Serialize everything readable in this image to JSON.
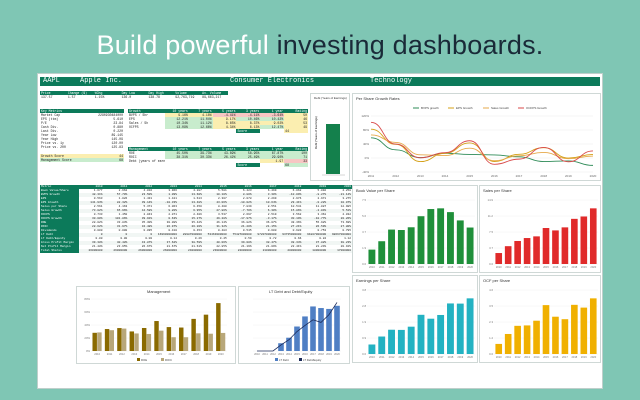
{
  "headline": {
    "part1": "Build powerful ",
    "part2": "investing dashboards."
  },
  "titlebar": {
    "ticker": "AAPL",
    "company": "Apple Inc.",
    "industry": "Consumer Electronics",
    "sector": "Technology"
  },
  "quote": {
    "headers": [
      "Price",
      "Change ($)",
      "%Chg",
      "Day Low",
      "Day High",
      "Volume",
      "Av. Volume"
    ],
    "values": [
      "137.57",
      "1.57",
      "1.15%",
      "136.0",
      "138.78",
      "92,763,719",
      "89,663,217"
    ]
  },
  "key_metrics": {
    "title": "Key Metrics",
    "rows": [
      [
        "Market Cap",
        "2290930484000"
      ],
      [
        "EPS (ttm)",
        "5.610"
      ],
      [
        "P/E",
        "23.84"
      ],
      [
        "Cash Div.",
        "0.880"
      ],
      [
        "Last Div.",
        "0.220"
      ],
      [
        "Year Low",
        "89.145"
      ],
      [
        "Year High",
        "145.09"
      ],
      [
        "Price vs. 1y",
        "120.00"
      ],
      [
        "Price vs. 200",
        "125.83"
      ]
    ],
    "growth_label": "Growth Score",
    "growth_value": "44",
    "mgmt_label": "Management Score",
    "mgmt_value": "68"
  },
  "growth": {
    "headers": [
      "Growth",
      "10 years",
      "7 years",
      "5 years",
      "3 years",
      "1 year",
      "Rating"
    ],
    "rows": [
      [
        "BVPS / Shr",
        "9.16%",
        "4.18%",
        "-4.41%",
        "-4.11%",
        "-3.64%",
        "50"
      ],
      [
        "EPS",
        "12.21%",
        "11.04%",
        "9.17%",
        "10.46%",
        "10.42%",
        "46"
      ],
      [
        "Sales / Sh",
        "10.34%",
        "11.12%",
        "8.65%",
        "8.37%",
        "9.02%",
        "53"
      ],
      [
        "OCFPS",
        "13.09%",
        "12.66%",
        "4.34%",
        "6.13%",
        "12.47%",
        "49"
      ]
    ],
    "score_label": "Score",
    "score_value": "44"
  },
  "management": {
    "headers": [
      "Management",
      "10 years",
      "7 years",
      "5 years",
      "3 years",
      "1 year",
      "Rating"
    ],
    "rows": [
      [
        "ROE",
        "45.50%",
        "39.73%",
        "43.89%",
        "58.95%",
        "67.87%",
        "100"
      ],
      [
        "ROIC",
        "38.31%",
        "30.33%",
        "26.42%",
        "25.49%",
        "29.90%",
        "71"
      ],
      [
        "Debt (years of earnings)",
        "",
        "",
        "",
        "",
        "1.97",
        "33"
      ]
    ],
    "score_label": "Score",
    "score_value": "68"
  },
  "debt_chart": {
    "title": "Debt (Years of Earnings)",
    "axis_label": "Debt (Years of Earnings)",
    "value": 1.97
  },
  "history": {
    "headers": [
      "Metric",
      "2010",
      "2011",
      "2012",
      "2013",
      "2014",
      "2015",
      "2016",
      "2017",
      "2018",
      "2019",
      "2020"
    ],
    "rows": [
      [
        "Book Value/Share",
        "1.677",
        "2.662",
        "4.016",
        "3.966",
        "4.287",
        "5.581",
        "6.423",
        "6.499",
        "6.062",
        "5.092",
        "4.258"
      ],
      [
        "BVPS Growth",
        "48.31%",
        "57.70%",
        "23.50%",
        "1.09%",
        "13.60%",
        "10.10%",
        "8.80%",
        "3.30%",
        "-10.09%",
        "-8.27%",
        "-21.14%"
      ],
      [
        "EPS",
        "0.563",
        "1.026",
        "1.431",
        "1.421",
        "1.613",
        "2.307",
        "2.078",
        "2.299",
        "2.976",
        "2.971",
        "3.275"
      ],
      [
        "EPS Growth",
        "141.93%",
        "82.32%",
        "39.14%",
        "-10.33%",
        "13.48%",
        "43.06%",
        "-10.02%",
        "10.64%",
        "29.41%",
        "-0.22%",
        "10.07%"
      ],
      [
        "Sales per Share",
        "2.561",
        "4.163",
        "5.371",
        "6.063",
        "6.450",
        "8.400",
        "7.839",
        "8.551",
        "10.541",
        "11.087",
        "12.985"
      ],
      [
        "Sales Growth",
        "73.02%",
        "65.96%",
        "44.58%",
        "9.20%",
        "6.95%",
        "27.86%",
        "-7.70%",
        "6.30%",
        "15.86%",
        "-2.04%",
        "5.51%"
      ],
      [
        "OCFPS",
        "0.733",
        "1.450",
        "2.043",
        "2.071",
        "2.406",
        "3.537",
        "2.697",
        "2.519",
        "3.562",
        "3.361",
        "4.032"
      ],
      [
        "OCFPS Growth",
        "30.00%",
        "101.86%",
        "39.91%",
        "0.63%",
        "15.27%",
        "49.28%",
        "-17.97%",
        "-3.17%",
        "30.19%",
        "-10.77%",
        "20.26%"
      ],
      [
        "ROE",
        "28.02%",
        "33.83%",
        "35.30%",
        "30.08%",
        "35.42%",
        "46.14%",
        "36.82%",
        "36.07%",
        "49.36%",
        "55.92%",
        "73.69%"
      ],
      [
        "ROIC",
        "28.62%",
        "31.97%",
        "34.48%",
        "26.97%",
        "26.20%",
        "31.32%",
        "21.20%",
        "21.15%",
        "27.21%",
        "26.59%",
        "27.80%"
      ],
      [
        "Dividends",
        "0.000",
        "0.000",
        "0.095",
        "0.410",
        "0.453",
        "0.483",
        "0.545",
        "0.600",
        "0.683",
        "0.753",
        "0.795"
      ],
      [
        "LT Debt",
        "0",
        "0",
        "0",
        "16960000000",
        "28987000000",
        "53463000000",
        "75427000000",
        "97207000000",
        "93735000000",
        "91807000000",
        "98667000000"
      ],
      [
        "LT Debt/Equity",
        "0.00",
        "0.00",
        "0.00",
        "0.14",
        "0.26",
        "0.45",
        "0.59",
        "0.72",
        "0.66",
        "0.84",
        "1.12"
      ],
      [
        "Gross Profit Margin",
        "39.38%",
        "40.48%",
        "43.87%",
        "37.62%",
        "38.59%",
        "40.06%",
        "39.08%",
        "38.47%",
        "38.34%",
        "37.82%",
        "38.23%"
      ],
      [
        "Net Profit Margin",
        "21.48%",
        "23.95%",
        "26.67%",
        "21.67%",
        "21.61%",
        "22.85%",
        "21.19%",
        "21.09%",
        "22.41%",
        "21.24%",
        "20.91%"
      ],
      [
        "Total Shares",
        "26000000",
        "26000000",
        "26000000",
        "26000000",
        "24000000",
        "23000000",
        "22000000",
        "21000000",
        "20000000",
        "18000000",
        "17000000"
      ]
    ]
  },
  "years": [
    "2010",
    "2011",
    "2012",
    "2013",
    "2014",
    "2015",
    "2016",
    "2017",
    "2018",
    "2019",
    "2020"
  ],
  "chart_data": [
    {
      "type": "line",
      "title": "Per Share Growth Rates",
      "x": [
        "2011",
        "2012",
        "2013",
        "2014",
        "2015",
        "2016",
        "2017",
        "2018",
        "2019",
        "2020"
      ],
      "series": [
        {
          "name": "BVPS growth",
          "color": "#2e8b57",
          "values": [
            57.7,
            23.5,
            1.1,
            13.6,
            10.1,
            8.8,
            3.3,
            -10.1,
            -8.3,
            -21.1
          ]
        },
        {
          "name": "EPS Growth",
          "color": "#d4a017",
          "values": [
            82.3,
            39.1,
            -10.3,
            13.5,
            43.1,
            -10.0,
            10.6,
            29.4,
            -0.2,
            10.1
          ]
        },
        {
          "name": "Sales Growth",
          "color": "#e6a94b",
          "values": [
            66.0,
            44.6,
            9.2,
            7.0,
            27.9,
            -7.7,
            6.3,
            15.9,
            -2.0,
            5.5
          ]
        },
        {
          "name": "OCFPS Growth",
          "color": "#d94a4a",
          "values": [
            101.9,
            39.9,
            0.6,
            15.3,
            49.3,
            -18.0,
            -3.2,
            30.2,
            -10.8,
            20.3
          ]
        }
      ]
    },
    {
      "type": "bar",
      "title": "Book Value per Share",
      "color": "#1f8f3a",
      "categories": [
        "2010",
        "2011",
        "2012",
        "2013",
        "2014",
        "2015",
        "2016",
        "2017",
        "2018",
        "2019",
        "2020"
      ],
      "values": [
        1.68,
        2.66,
        4.02,
        3.97,
        4.29,
        5.58,
        6.42,
        6.5,
        6.06,
        5.09,
        4.26
      ]
    },
    {
      "type": "bar",
      "title": "Sales per Share",
      "color": "#e02a2a",
      "categories": [
        "2010",
        "2011",
        "2012",
        "2013",
        "2014",
        "2015",
        "2016",
        "2017",
        "2018",
        "2019",
        "2020"
      ],
      "values": [
        2.56,
        4.16,
        5.37,
        6.06,
        6.45,
        8.4,
        7.84,
        8.55,
        10.54,
        11.09,
        12.99
      ]
    },
    {
      "type": "bar",
      "title": "Earnings per Share",
      "color": "#23b2c2",
      "categories": [
        "2010",
        "2011",
        "2012",
        "2013",
        "2014",
        "2015",
        "2016",
        "2017",
        "2018",
        "2019",
        "2020"
      ],
      "values": [
        0.56,
        1.03,
        1.43,
        1.42,
        1.61,
        2.31,
        2.08,
        2.3,
        2.98,
        2.97,
        3.28
      ]
    },
    {
      "type": "bar",
      "title": "OCF per Share",
      "color": "#f0b000",
      "categories": [
        "2010",
        "2011",
        "2012",
        "2013",
        "2014",
        "2015",
        "2016",
        "2017",
        "2018",
        "2019",
        "2020"
      ],
      "values": [
        0.73,
        1.45,
        2.04,
        2.07,
        2.41,
        3.54,
        2.7,
        2.52,
        3.56,
        3.36,
        4.03
      ]
    },
    {
      "type": "bar",
      "title": "Management",
      "categories": [
        "2010",
        "2011",
        "2012",
        "2013",
        "2014",
        "2015",
        "2016",
        "2017",
        "2018",
        "2019",
        "2020"
      ],
      "series": [
        {
          "name": "ROE",
          "color": "#8a6a00",
          "values": [
            28.0,
            33.8,
            35.3,
            30.1,
            35.4,
            46.1,
            36.8,
            36.1,
            49.4,
            55.9,
            73.7
          ]
        },
        {
          "name": "ROIC",
          "color": "#b8a77a",
          "values": [
            28.6,
            32.0,
            34.5,
            27.0,
            26.2,
            31.3,
            21.2,
            21.2,
            27.2,
            26.6,
            27.8
          ]
        }
      ]
    },
    {
      "type": "bar",
      "title": "LT Debt and Debt/Equity",
      "categories": [
        "2010",
        "2011",
        "2012",
        "2013",
        "2014",
        "2015",
        "2016",
        "2017",
        "2018",
        "2019",
        "2020"
      ],
      "series": [
        {
          "name": "LT Debt",
          "color": "#4f7fc4",
          "values": [
            0,
            0,
            0,
            16.96,
            28.99,
            53.46,
            75.43,
            97.21,
            93.74,
            91.81,
            98.67
          ]
        },
        {
          "name": "LT Debt/Equity",
          "color": "#1c2b5a",
          "values": [
            0,
            0,
            0,
            0.14,
            0.26,
            0.45,
            0.59,
            0.72,
            0.66,
            0.84,
            1.12
          ]
        }
      ]
    }
  ]
}
